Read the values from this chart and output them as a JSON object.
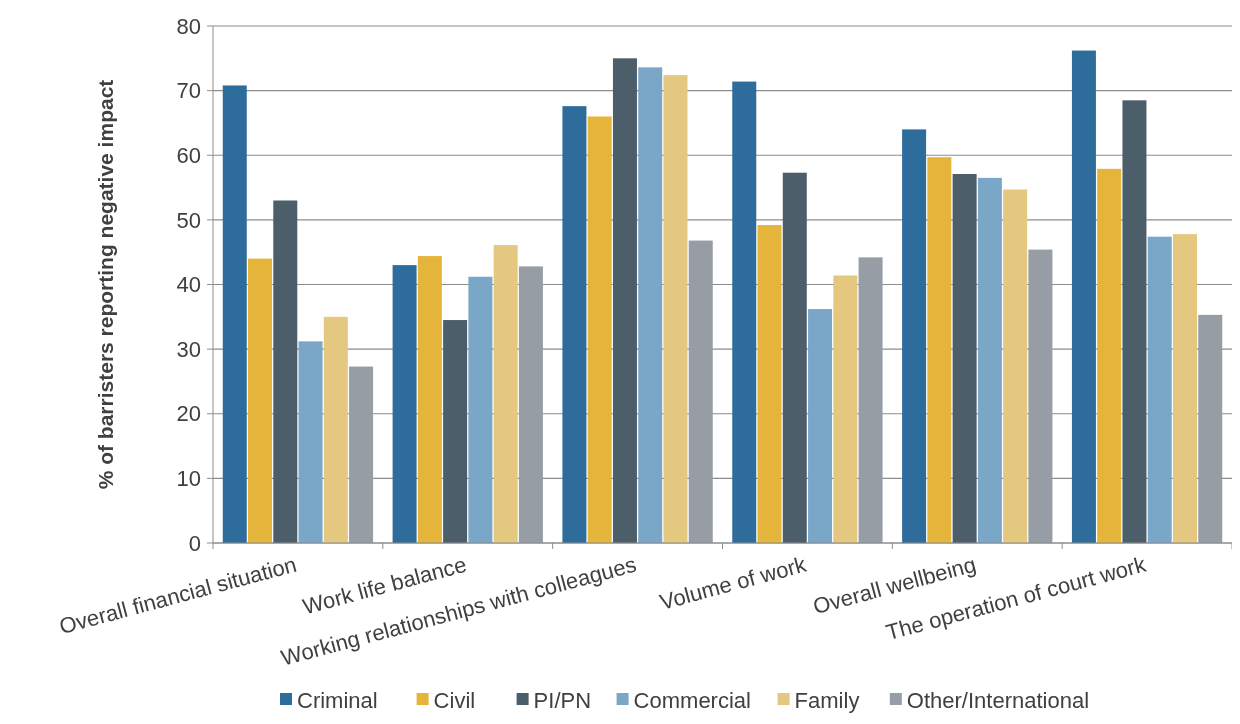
{
  "chart_data": {
    "type": "bar",
    "ylabel": "% of barristers reporting negative impact",
    "categories": [
      "Overall financial situation",
      "Work life balance",
      "Working relationships with colleagues",
      "Volume of work",
      "Overall wellbeing",
      "The operation of court work"
    ],
    "series": [
      {
        "name": "Criminal",
        "color": "#2e6d9b",
        "values": [
          70.8,
          43,
          67.6,
          71.4,
          64,
          76.2
        ]
      },
      {
        "name": "Civil",
        "color": "#e5b53b",
        "values": [
          44,
          44.4,
          66,
          49.2,
          59.7,
          57.9
        ]
      },
      {
        "name": "PI/PN",
        "color": "#4d5e6b",
        "values": [
          53,
          34.5,
          75,
          57.3,
          57.1,
          68.5
        ]
      },
      {
        "name": "Commercial",
        "color": "#7aa6c8",
        "values": [
          31.2,
          41.2,
          73.6,
          36.2,
          56.5,
          47.4
        ]
      },
      {
        "name": "Family",
        "color": "#e4c880",
        "values": [
          35,
          46.1,
          72.4,
          41.4,
          54.7,
          47.8
        ]
      },
      {
        "name": "Other/International",
        "color": "#969da5",
        "values": [
          27.3,
          42.8,
          46.8,
          44.2,
          45.4,
          35.3
        ]
      }
    ],
    "ylim": [
      0,
      80
    ],
    "yticks": [
      0,
      10,
      20,
      30,
      40,
      50,
      60,
      70,
      80
    ],
    "grid": "y",
    "legend": "bottom"
  }
}
